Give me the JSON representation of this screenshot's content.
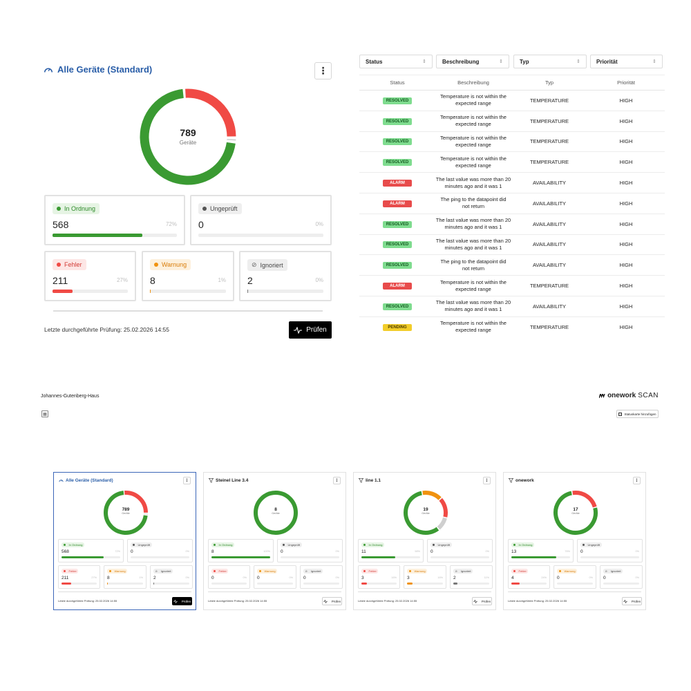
{
  "main_card": {
    "title": "Alle Geräte (Standard)",
    "total": "789",
    "total_label": "Geräte",
    "menu_label": "⋮",
    "stats": {
      "ok": {
        "label": "In Ordnung",
        "value": "568",
        "pct": "72%",
        "fraction": 0.72
      },
      "unchecked": {
        "label": "Ungeprüft",
        "value": "0",
        "pct": "0%",
        "fraction": 0
      },
      "error": {
        "label": "Fehler",
        "value": "211",
        "pct": "27%",
        "fraction": 0.27
      },
      "warning": {
        "label": "Warnung",
        "value": "8",
        "pct": "1%",
        "fraction": 0.01
      },
      "ignored": {
        "label": "Ignoriert",
        "value": "2",
        "pct": "0%",
        "fraction": 0.003
      }
    },
    "last_check": "Letzte durchgeführte Prüfung: 25.02.2026 14:55",
    "check_button": "Prüfen"
  },
  "colors": {
    "ok": "#3a9a32",
    "error": "#f04a45",
    "warning": "#f0920f",
    "ignored": "#cfcfcf",
    "unchecked": "#777777",
    "accent": "#2a5ea8"
  },
  "filters": [
    {
      "label": "Status",
      "caret": "⇕"
    },
    {
      "label": "Beschreibung",
      "caret": "⇕"
    },
    {
      "label": "Typ",
      "caret": "⇕"
    },
    {
      "label": "Priorität",
      "caret": "⇕"
    }
  ],
  "table": {
    "headers": [
      "Status",
      "Beschreibung",
      "Typ",
      "Priorität"
    ],
    "rows": [
      {
        "status": "RESOLVED",
        "desc1": "Temperature is not within the",
        "desc2": "expected range",
        "type": "TEMPERATURE",
        "priority": "HIGH"
      },
      {
        "status": "RESOLVED",
        "desc1": "Temperature is not within the",
        "desc2": "expected range",
        "type": "TEMPERATURE",
        "priority": "HIGH"
      },
      {
        "status": "RESOLVED",
        "desc1": "Temperature is not within the",
        "desc2": "expected range",
        "type": "TEMPERATURE",
        "priority": "HIGH"
      },
      {
        "status": "RESOLVED",
        "desc1": "Temperature is not within the",
        "desc2": "expected range",
        "type": "TEMPERATURE",
        "priority": "HIGH"
      },
      {
        "status": "ALARM",
        "desc1": "The last value was more than 20",
        "desc2": "minutes ago and it was 1",
        "type": "AVAILABILITY",
        "priority": "HIGH"
      },
      {
        "status": "ALARM",
        "desc1": "The ping to the datapoint did",
        "desc2": "not return",
        "type": "AVAILABILITY",
        "priority": "HIGH"
      },
      {
        "status": "RESOLVED",
        "desc1": "The last value was more than 20",
        "desc2": "minutes ago and it was 1",
        "type": "AVAILABILITY",
        "priority": "HIGH"
      },
      {
        "status": "RESOLVED",
        "desc1": "The last value was more than 20",
        "desc2": "minutes ago and it was 1",
        "type": "AVAILABILITY",
        "priority": "HIGH"
      },
      {
        "status": "RESOLVED",
        "desc1": "The ping to the datapoint did",
        "desc2": "not return",
        "type": "AVAILABILITY",
        "priority": "HIGH"
      },
      {
        "status": "ALARM",
        "desc1": "Temperature is not within the",
        "desc2": "expected range",
        "type": "TEMPERATURE",
        "priority": "HIGH"
      },
      {
        "status": "RESOLVED",
        "desc1": "The last value was more than 20",
        "desc2": "minutes ago and it was 1",
        "type": "AVAILABILITY",
        "priority": "HIGH"
      },
      {
        "status": "PENDING",
        "desc1": "Temperature is not within the",
        "desc2": "expected range",
        "type": "TEMPERATURE",
        "priority": "HIGH"
      }
    ]
  },
  "site": {
    "name": "Johannes-Gutenberg-Haus",
    "brand_prefix": "onework",
    "brand_suffix": "SCAN",
    "add_card_button": "Statuskarte hinzufügen"
  },
  "cards": [
    {
      "title": "Alle Geräte (Standard)",
      "icon": "gauge-icon",
      "selected": true,
      "total": "789",
      "total_label": "Geräte",
      "donut": {
        "ok": 568,
        "warning": 8,
        "error": 211,
        "ignored": 2
      },
      "stats": {
        "ok": {
          "label": "In Ordnung",
          "value": "568",
          "pct": "72%",
          "fraction": 0.72
        },
        "unchecked": {
          "label": "Ungeprüft",
          "value": "0",
          "pct": "0%",
          "fraction": 0
        },
        "error": {
          "label": "Fehler",
          "value": "211",
          "pct": "27%",
          "fraction": 0.27
        },
        "warning": {
          "label": "Warnung",
          "value": "8",
          "pct": "1%",
          "fraction": 0.01
        },
        "ignored": {
          "label": "Ignoriert",
          "value": "2",
          "pct": "0%",
          "fraction": 0.003
        }
      },
      "last_check": "Letzte durchgeführte Prüfung: 25.02.2026 14:55",
      "check_button": "Prüfen"
    },
    {
      "title": "Steinel Line 3.4",
      "icon": "filter-icon",
      "selected": false,
      "total": "8",
      "total_label": "Geräte",
      "donut": {
        "ok": 8,
        "warning": 0,
        "error": 0,
        "ignored": 0
      },
      "stats": {
        "ok": {
          "label": "In Ordnung",
          "value": "8",
          "pct": "100%",
          "fraction": 1
        },
        "unchecked": {
          "label": "Ungeprüft",
          "value": "0",
          "pct": "0%",
          "fraction": 0
        },
        "error": {
          "label": "Fehler",
          "value": "0",
          "pct": "0%",
          "fraction": 0
        },
        "warning": {
          "label": "Warnung",
          "value": "0",
          "pct": "0%",
          "fraction": 0
        },
        "ignored": {
          "label": "Ignoriert",
          "value": "0",
          "pct": "0%",
          "fraction": 0
        }
      },
      "last_check": "Letzte durchgeführte Prüfung: 25.02.2026 14:55",
      "check_button": "Prüfen"
    },
    {
      "title": "line 1.1",
      "icon": "filter-icon",
      "selected": false,
      "total": "19",
      "total_label": "Geräte",
      "donut": {
        "ok": 11,
        "warning": 3,
        "error": 3,
        "ignored": 2
      },
      "stats": {
        "ok": {
          "label": "In Ordnung",
          "value": "11",
          "pct": "58%",
          "fraction": 0.58
        },
        "unchecked": {
          "label": "Ungeprüft",
          "value": "0",
          "pct": "0%",
          "fraction": 0
        },
        "error": {
          "label": "Fehler",
          "value": "3",
          "pct": "16%",
          "fraction": 0.16
        },
        "warning": {
          "label": "Warnung",
          "value": "3",
          "pct": "16%",
          "fraction": 0.16
        },
        "ignored": {
          "label": "Ignoriert",
          "value": "2",
          "pct": "11%",
          "fraction": 0.11
        }
      },
      "last_check": "Letzte durchgeführte Prüfung: 25.02.2026 14:55",
      "check_button": "Prüfen"
    },
    {
      "title": "onework",
      "icon": "filter-icon",
      "selected": false,
      "total": "17",
      "total_label": "Geräte",
      "donut": {
        "ok": 13,
        "warning": 0,
        "error": 4,
        "ignored": 0
      },
      "stats": {
        "ok": {
          "label": "In Ordnung",
          "value": "13",
          "pct": "76%",
          "fraction": 0.76
        },
        "unchecked": {
          "label": "Ungeprüft",
          "value": "0",
          "pct": "0%",
          "fraction": 0
        },
        "error": {
          "label": "Fehler",
          "value": "4",
          "pct": "24%",
          "fraction": 0.24
        },
        "warning": {
          "label": "Warnung",
          "value": "0",
          "pct": "0%",
          "fraction": 0
        },
        "ignored": {
          "label": "Ignoriert",
          "value": "0",
          "pct": "0%",
          "fraction": 0
        }
      },
      "last_check": "Letzte durchgeführte Prüfung: 25.02.2026 14:55",
      "check_button": "Prüfen"
    }
  ]
}
